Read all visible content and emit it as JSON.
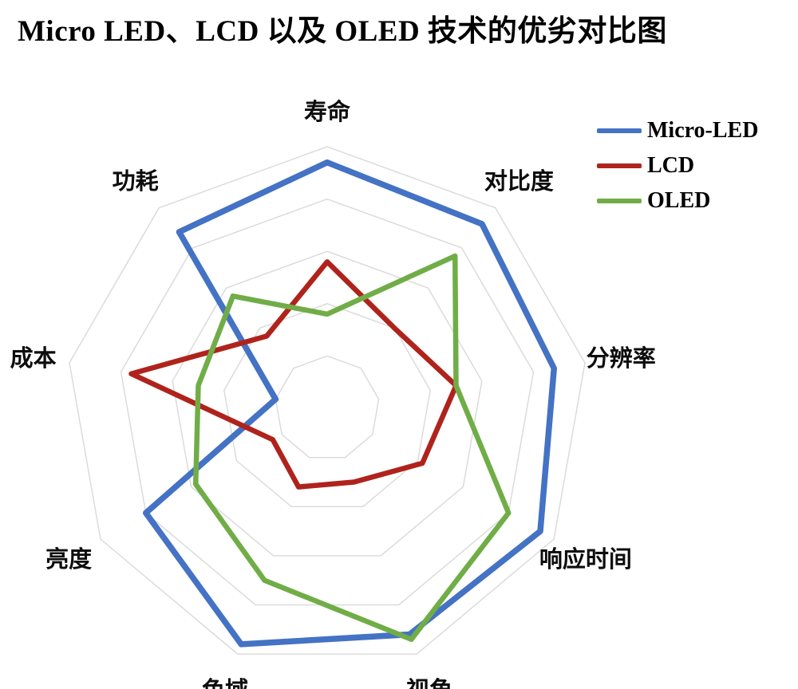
{
  "title": "Micro LED、LCD 以及 OLED 技术的优劣对比图",
  "legend": [
    {
      "label": "Micro-LED",
      "color": "#4472C4"
    },
    {
      "label": "LCD",
      "color": "#AF231C"
    },
    {
      "label": "OLED",
      "color": "#70AD47"
    }
  ],
  "chart_data": {
    "type": "radar",
    "title": "Micro LED、LCD 以及 OLED 技术的优劣对比图",
    "categories": [
      "寿命",
      "对比度",
      "分辨率",
      "响应时间",
      "视角",
      "色域",
      "亮度",
      "成本",
      "功耗"
    ],
    "series": [
      {
        "name": "Micro-LED",
        "color": "#4472C4",
        "stroke_width": 7.5,
        "values": [
          4.7,
          4.6,
          4.4,
          4.7,
          4.6,
          4.8,
          4.0,
          1.0,
          4.4
        ]
      },
      {
        "name": "LCD",
        "color": "#AF231C",
        "stroke_width": 6.5,
        "values": [
          2.8,
          2.0,
          2.5,
          2.1,
          1.5,
          1.6,
          1.2,
          3.8,
          1.8
        ]
      },
      {
        "name": "OLED",
        "color": "#70AD47",
        "stroke_width": 6.5,
        "values": [
          1.8,
          3.8,
          2.5,
          4.0,
          4.7,
          3.5,
          2.9,
          2.5,
          2.8
        ]
      }
    ],
    "scale": {
      "min": 0,
      "max": 5,
      "rings": 5
    },
    "grid": true,
    "grid_color": "#D9D9D9",
    "spokes": false,
    "legend_position": "top-right"
  }
}
